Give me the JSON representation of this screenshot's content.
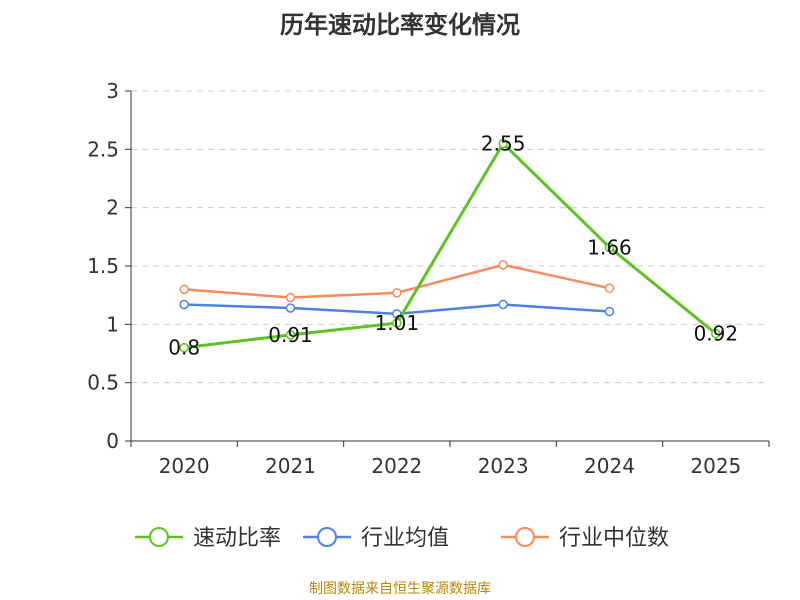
{
  "chart_data": {
    "type": "line",
    "title": "历年速动比率变化情况",
    "categories": [
      "2020",
      "2021",
      "2022",
      "2023",
      "2024",
      "2025"
    ],
    "ylim": [
      0,
      3
    ],
    "yticks": [
      "0",
      "0.5",
      "1",
      "1.5",
      "2",
      "2.5",
      "3"
    ],
    "grid": true,
    "legend_position": "bottom",
    "series": [
      {
        "name": "速动比率",
        "color": "#5fc224",
        "values": [
          0.8,
          0.91,
          1.01,
          2.55,
          1.66,
          0.92
        ],
        "labels": [
          "0.8",
          "0.91",
          "1.01",
          "2.55",
          "1.66",
          "0.92"
        ]
      },
      {
        "name": "行业均值",
        "color": "#4e82de",
        "values": [
          1.17,
          1.14,
          1.09,
          1.17,
          1.11,
          null
        ]
      },
      {
        "name": "行业中位数",
        "color": "#f48b5a",
        "values": [
          1.3,
          1.23,
          1.27,
          1.51,
          1.31,
          null
        ]
      }
    ]
  },
  "source": "制图数据来自恒生聚源数据库"
}
